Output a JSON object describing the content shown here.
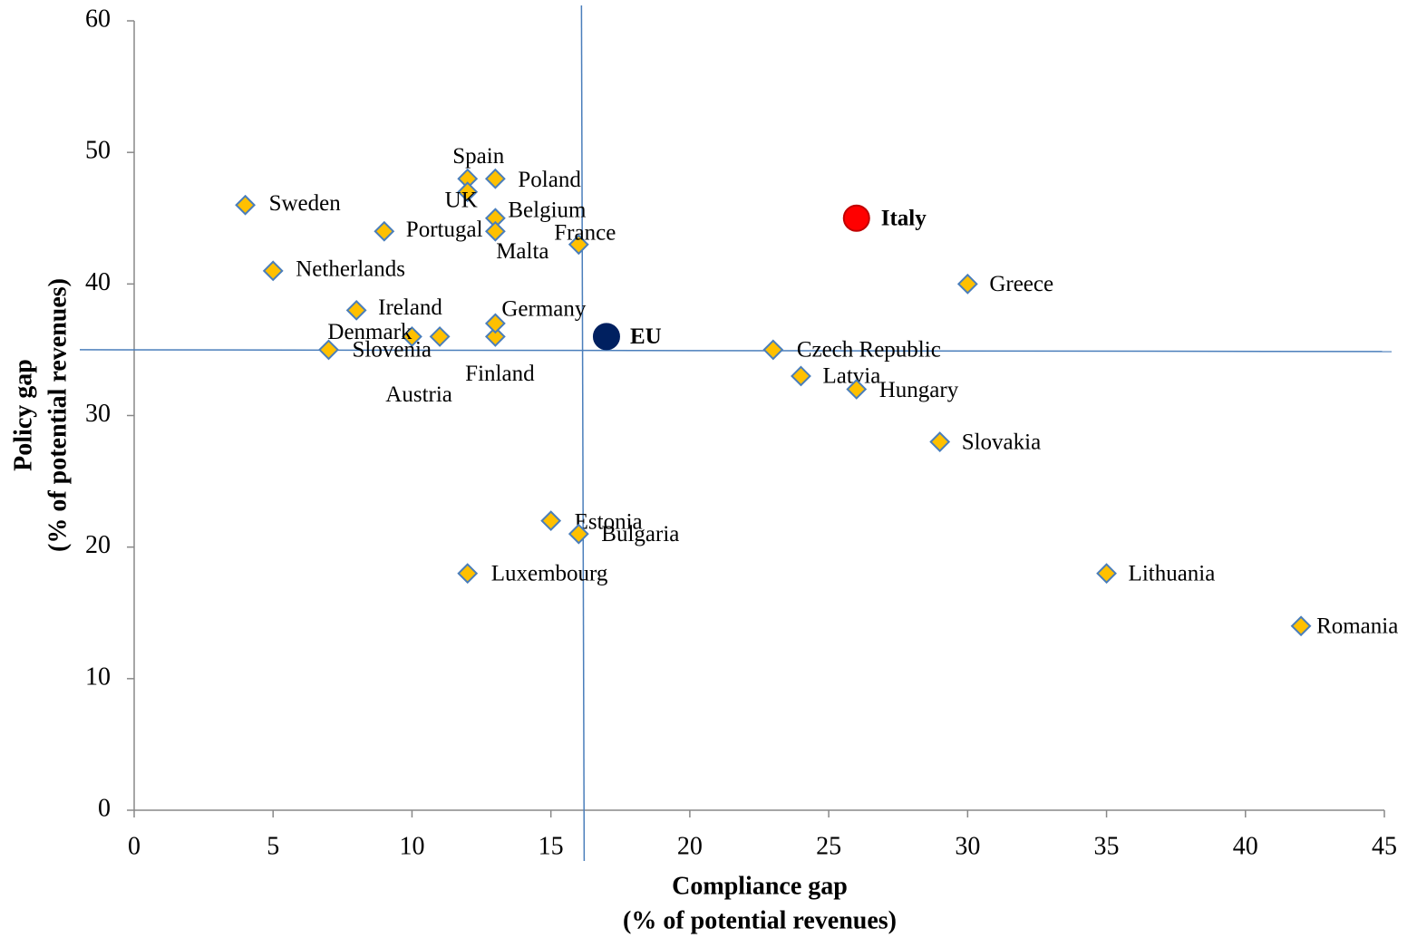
{
  "chart_data": {
    "type": "scatter",
    "x_label": [
      "Compliance gap",
      "(% of potential revenues)"
    ],
    "y_label": [
      "Policy gap",
      "(% of potential revenues)"
    ],
    "xlim": [
      0,
      45
    ],
    "xticks": [
      0,
      5,
      10,
      15,
      20,
      25,
      30,
      35,
      40,
      45
    ],
    "ylim": [
      0,
      60
    ],
    "yticks": [
      0,
      10,
      20,
      30,
      40,
      50,
      60
    ],
    "reference_lines": {
      "x": 16.1,
      "y": 35,
      "color": "#4a7ebb"
    },
    "series": [
      {
        "marker": "diamond",
        "color": "#ffc000",
        "edge_color": "#4a7ebb",
        "label_color": "#000000",
        "labels": [
          "Sweden",
          "Netherlands",
          "Portugal",
          "Ireland",
          "Denmark",
          "Slovenia",
          "Austria",
          "Finland",
          "Germany",
          "Spain",
          "UK",
          "Poland",
          "Belgium",
          "Malta",
          "France",
          "Estonia",
          "Bulgaria",
          "Luxembourg",
          "Czech Republic",
          "Latvia",
          "Hungary",
          "Slovakia",
          "Greece",
          "Lithuania",
          "Romania"
        ],
        "x": [
          4,
          5,
          9,
          8,
          10,
          7,
          11,
          13,
          13,
          12,
          12,
          13,
          13,
          13,
          16,
          15,
          16,
          12,
          23,
          24,
          26,
          29,
          30,
          35,
          42
        ],
        "values": [
          46,
          41,
          44,
          38,
          36,
          35,
          36,
          36,
          37,
          48,
          47,
          48,
          45,
          44,
          43,
          22,
          21,
          18,
          35,
          33,
          32,
          28,
          40,
          18,
          14
        ]
      },
      {
        "marker": "circle",
        "color": "#ff0000",
        "edge_color": "#c00000",
        "label_color": "#ff0000",
        "labels": [
          "Italy"
        ],
        "x": [
          26
        ],
        "values": [
          45
        ]
      },
      {
        "marker": "circle",
        "color": "#002060",
        "edge_color": "#002060",
        "label_color": "#ff0000",
        "labels": [
          "EU"
        ],
        "x": [
          17
        ],
        "values": [
          36
        ]
      }
    ]
  }
}
